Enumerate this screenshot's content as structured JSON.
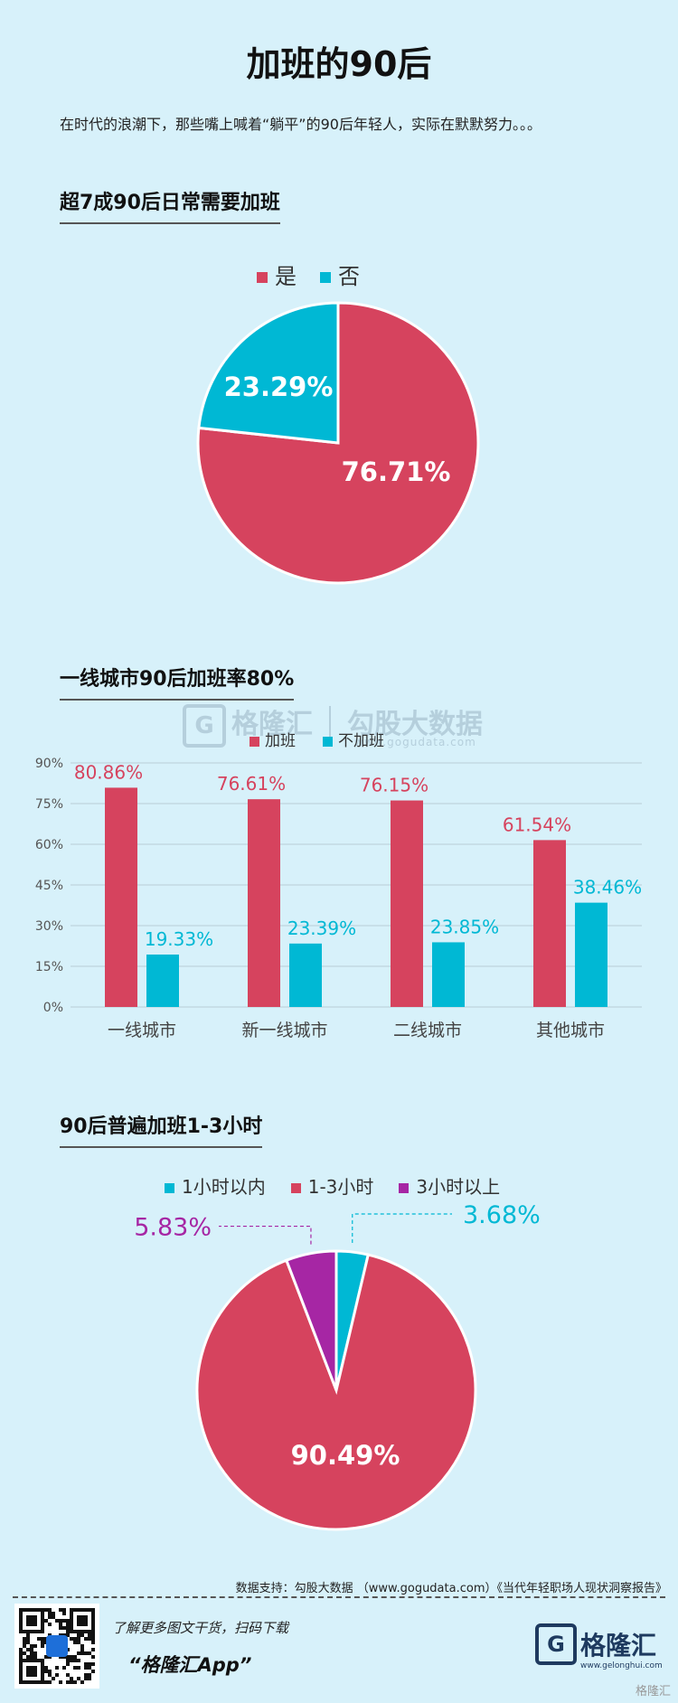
{
  "title": "加班的90后",
  "intro": "在时代的浪潮下，那些嘴上喊着“躺平”的90后年轻人，实际在默默努力。。。",
  "colors": {
    "red": "#d6435e",
    "cyan": "#00b8d4",
    "purple": "#a626a4",
    "background": "#d7f1fa"
  },
  "section1": {
    "title": "超7成90后日常需要加班"
  },
  "section2": {
    "title": "一线城市90后加班率80%"
  },
  "section3": {
    "title": "90后普遍加班1-3小时"
  },
  "watermark": {
    "brand": "格隆汇",
    "partner": "勾股大数据",
    "url": "www.gogudata.com",
    "logo_letter": "G"
  },
  "source": "数据支持：勾股大数据 （www.gogudata.com）《当代年轻职场人现状洞察报告》",
  "footer": {
    "line1": "了解更多图文干货，扫码下载",
    "line2": "“格隆汇App”",
    "logo_letter": "G",
    "logo_text": "格隆汇",
    "logo_url": "www.gelonghui.com",
    "corner_mark": "格隆汇"
  },
  "chart_data": [
    {
      "type": "pie",
      "legend": [
        "是",
        "否"
      ],
      "slices": [
        {
          "label": "是",
          "value": 76.71,
          "display": "76.71%",
          "color": "#d6435e"
        },
        {
          "label": "否",
          "value": 23.29,
          "display": "23.29%",
          "color": "#00b8d4"
        }
      ]
    },
    {
      "type": "bar",
      "categories": [
        "一线城市",
        "新一线城市",
        "二线城市",
        "其他城市"
      ],
      "series": [
        {
          "name": "加班",
          "values": [
            80.86,
            76.61,
            76.15,
            61.54
          ],
          "labels": [
            "80.86%",
            "76.61%",
            "76.15%",
            "61.54%"
          ],
          "color": "#d6435e"
        },
        {
          "name": "不加班",
          "values": [
            19.33,
            23.39,
            23.85,
            38.46
          ],
          "labels": [
            "19.33%",
            "23.39%",
            "23.85%",
            "38.46%"
          ],
          "color": "#00b8d4"
        }
      ],
      "ylim": [
        0,
        90
      ],
      "yticks": [
        "0%",
        "15%",
        "30%",
        "45%",
        "60%",
        "75%",
        "90%"
      ],
      "ytick_values": [
        0,
        15,
        30,
        45,
        60,
        75,
        90
      ],
      "grid": true
    },
    {
      "type": "pie",
      "legend": [
        "1小时以内",
        "1-3小时",
        "3小时以上"
      ],
      "slices": [
        {
          "label": "1小时以内",
          "value": 3.68,
          "display": "3.68%",
          "color": "#00b8d4"
        },
        {
          "label": "1-3小时",
          "value": 90.49,
          "display": "90.49%",
          "color": "#d6435e"
        },
        {
          "label": "3小时以上",
          "value": 5.83,
          "display": "5.83%",
          "color": "#a626a4"
        }
      ]
    }
  ]
}
